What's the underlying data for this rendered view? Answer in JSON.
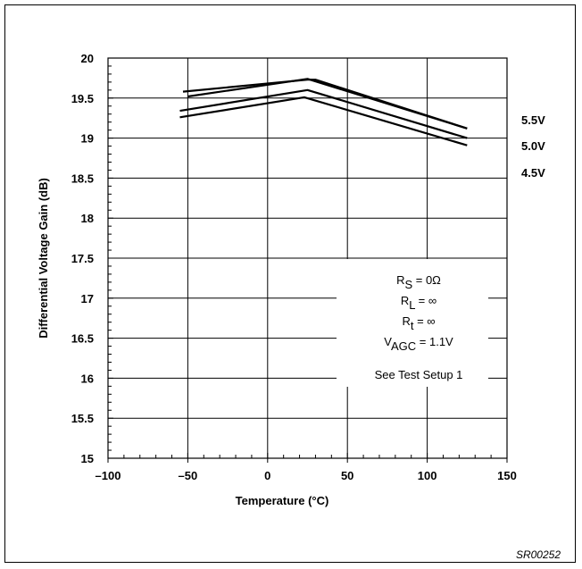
{
  "chart_data": {
    "type": "line",
    "title": "",
    "xlabel": "Temperature (°C)",
    "ylabel": "Differential Voltage Gain (dB)",
    "xlim": [
      -100,
      150
    ],
    "ylim": [
      15,
      20
    ],
    "x_ticks": [
      "–100",
      "–50",
      "0",
      "50",
      "100",
      "150"
    ],
    "y_ticks": [
      "15",
      "15.5",
      "16",
      "16.5",
      "17",
      "17.5",
      "18",
      "18.5",
      "19",
      "19.5",
      "20"
    ],
    "grid": true,
    "series": [
      {
        "name": "5.5V",
        "x": [
          -53,
          25,
          30,
          125
        ],
        "y": [
          19.58,
          19.73,
          19.73,
          19.12
        ]
      },
      {
        "name": "5.0V",
        "x": [
          -50,
          25,
          125
        ],
        "y": [
          19.52,
          19.74,
          19.12
        ]
      },
      {
        "name": "4.5V",
        "x": [
          -55,
          25,
          125
        ],
        "y": [
          19.34,
          19.6,
          19.0
        ]
      },
      {
        "name": "",
        "x": [
          -55,
          23,
          125
        ],
        "y": [
          19.26,
          19.51,
          18.91
        ]
      }
    ],
    "series_labels": [
      "5.5V",
      "5.0V",
      "4.5V"
    ],
    "annotations": [
      {
        "main": "R",
        "sub": "S",
        "rest": " = 0Ω"
      },
      {
        "main": "R",
        "sub": "L",
        "rest": " = ∞"
      },
      {
        "main": "R",
        "sub": "t",
        "rest": " = ∞"
      },
      {
        "main": "V",
        "sub": "AGC",
        "rest": " = 1.1V"
      },
      {
        "main": "See Test Setup 1",
        "sub": "",
        "rest": ""
      }
    ],
    "figure_id": "SR00252"
  },
  "colors": {
    "line": "#000000",
    "grid": "#000000",
    "background": "#ffffff"
  }
}
